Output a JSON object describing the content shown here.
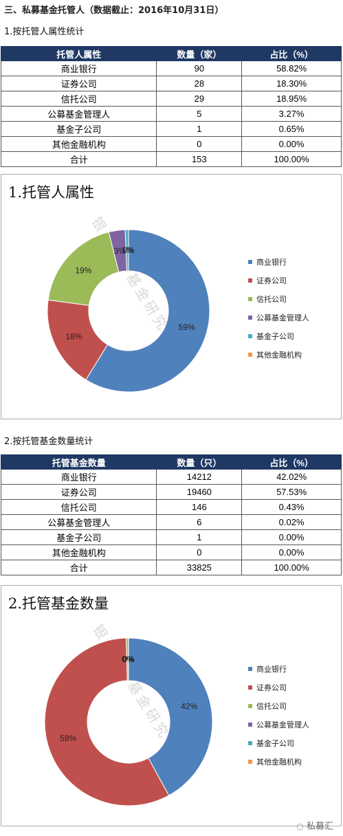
{
  "heading": "三、私募基金托管人（数据截止：2016年10月31日）",
  "section1": {
    "subtitle": "1.按托管人属性统计",
    "headers": [
      "托管人属性",
      "数量（家）",
      "占比（%）"
    ],
    "rows": [
      [
        "商业银行",
        "90",
        "58.82%"
      ],
      [
        "证券公司",
        "28",
        "18.30%"
      ],
      [
        "信托公司",
        "29",
        "18.95%"
      ],
      [
        "公募基金管理人",
        "5",
        "3.27%"
      ],
      [
        "基金子公司",
        "1",
        "0.65%"
      ],
      [
        "其他金融机构",
        "0",
        "0.00%"
      ],
      [
        "合计",
        "153",
        "100.00%"
      ]
    ]
  },
  "section2": {
    "subtitle": "2.按托管基金数量统计",
    "headers": [
      "托管基金数量",
      "数量（只）",
      "占比（%）"
    ],
    "rows": [
      [
        "商业银行",
        "14212",
        "42.02%"
      ],
      [
        "证券公司",
        "19460",
        "57.53%"
      ],
      [
        "信托公司",
        "146",
        "0.43%"
      ],
      [
        "公募基金管理人",
        "6",
        "0.02%"
      ],
      [
        "基金子公司",
        "1",
        "0.00%"
      ],
      [
        "其他金融机构",
        "0",
        "0.00%"
      ],
      [
        "合计",
        "33825",
        "100.00%"
      ]
    ]
  },
  "watermark": "银河证券基金研究中心",
  "footer": "私募汇",
  "chart_data": [
    {
      "type": "pie",
      "title": "1.托管人属性",
      "categories": [
        "商业银行",
        "证券公司",
        "信托公司",
        "公募基金管理人",
        "基金子公司",
        "其他金融机构"
      ],
      "values": [
        90,
        28,
        29,
        5,
        1,
        0
      ],
      "data_labels": [
        "59%",
        "18%",
        "19%",
        "3%",
        "1%",
        "0%"
      ],
      "colors": [
        "#4f81bd",
        "#c0504d",
        "#9bbb59",
        "#8064a2",
        "#4bacc6",
        "#f79646"
      ],
      "legend": "right"
    },
    {
      "type": "pie",
      "title": "2.托管基金数量",
      "categories": [
        "商业银行",
        "证券公司",
        "信托公司",
        "公募基金管理人",
        "基金子公司",
        "其他金融机构"
      ],
      "values": [
        14212,
        19460,
        146,
        6,
        1,
        0
      ],
      "data_labels": [
        "42%",
        "58%",
        "0%",
        "0%",
        "0%",
        "0%"
      ],
      "colors": [
        "#4f81bd",
        "#c0504d",
        "#9bbb59",
        "#8064a2",
        "#4bacc6",
        "#f79646"
      ],
      "legend": "right"
    }
  ]
}
